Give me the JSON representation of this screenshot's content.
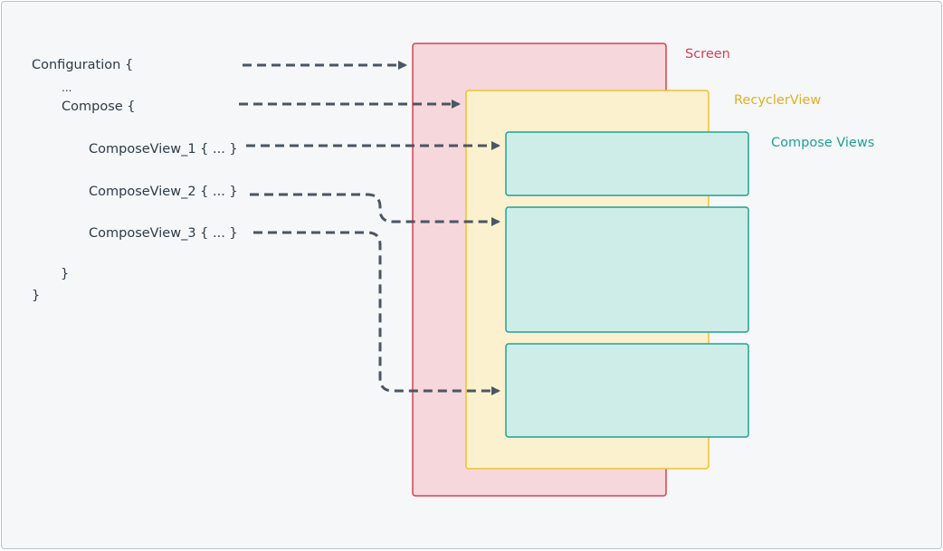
{
  "code": {
    "configuration": "Configuration {",
    "ellipsis": "...",
    "compose": "Compose {",
    "compose_view_1": "ComposeView_1 { ... }",
    "compose_view_2": "ComposeView_2 { ... }",
    "compose_view_3": "ComposeView_3 { ... }",
    "inner_close": "}",
    "outer_close": "}"
  },
  "labels": {
    "screen": "Screen",
    "recycler_view": "RecyclerView",
    "compose_views": "Compose Views"
  },
  "colors": {
    "background": "#f5f7f9",
    "arrow": "#4a5663",
    "screen_fill": "#f6d7dc",
    "screen_stroke": "#d9404f",
    "recycler_fill": "#fcf1cf",
    "recycler_stroke": "#f2c12e",
    "compose_fill": "#cfede8",
    "compose_stroke": "#1fa291"
  }
}
